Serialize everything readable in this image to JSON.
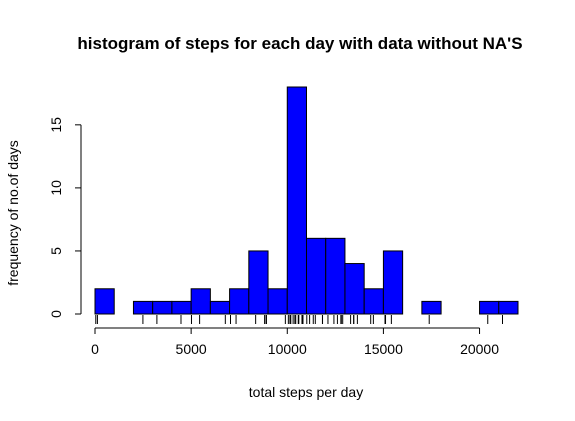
{
  "chart_data": {
    "type": "bar",
    "title": "histogram of steps for each day with data without NA'S",
    "xlabel": "total steps per day",
    "ylabel": "frequency of no.of days",
    "bar_color": "#0000ff",
    "border_color": "#000000",
    "bin_width": 1000,
    "bins": [
      {
        "start": 0,
        "end": 1000,
        "count": 2
      },
      {
        "start": 1000,
        "end": 2000,
        "count": 0
      },
      {
        "start": 2000,
        "end": 3000,
        "count": 1
      },
      {
        "start": 3000,
        "end": 4000,
        "count": 1
      },
      {
        "start": 4000,
        "end": 5000,
        "count": 1
      },
      {
        "start": 5000,
        "end": 6000,
        "count": 2
      },
      {
        "start": 6000,
        "end": 7000,
        "count": 1
      },
      {
        "start": 7000,
        "end": 8000,
        "count": 2
      },
      {
        "start": 8000,
        "end": 9000,
        "count": 5
      },
      {
        "start": 9000,
        "end": 10000,
        "count": 2
      },
      {
        "start": 10000,
        "end": 11000,
        "count": 18
      },
      {
        "start": 11000,
        "end": 12000,
        "count": 6
      },
      {
        "start": 12000,
        "end": 13000,
        "count": 6
      },
      {
        "start": 13000,
        "end": 14000,
        "count": 4
      },
      {
        "start": 14000,
        "end": 15000,
        "count": 2
      },
      {
        "start": 15000,
        "end": 16000,
        "count": 5
      },
      {
        "start": 16000,
        "end": 17000,
        "count": 0
      },
      {
        "start": 17000,
        "end": 18000,
        "count": 1
      },
      {
        "start": 18000,
        "end": 19000,
        "count": 0
      },
      {
        "start": 19000,
        "end": 20000,
        "count": 0
      },
      {
        "start": 20000,
        "end": 21000,
        "count": 1
      },
      {
        "start": 21000,
        "end": 22000,
        "count": 1
      }
    ],
    "xlim": [
      0,
      22000
    ],
    "ylim": [
      0,
      18
    ],
    "x_ticks": [
      {
        "value": 0,
        "label": "0"
      },
      {
        "value": 5000,
        "label": "5000"
      },
      {
        "value": 10000,
        "label": "10000"
      },
      {
        "value": 15000,
        "label": "15000"
      },
      {
        "value": 20000,
        "label": "20000"
      }
    ],
    "y_ticks": [
      {
        "value": 0,
        "label": "0"
      },
      {
        "value": 5,
        "label": "5"
      },
      {
        "value": 10,
        "label": "10"
      },
      {
        "value": 15,
        "label": "15"
      }
    ],
    "rug": [
      41,
      126,
      2492,
      3219,
      4472,
      5018,
      5441,
      6778,
      7047,
      7336,
      8355,
      8821,
      8841,
      8918,
      9900,
      10056,
      10139,
      10183,
      10304,
      10395,
      10439,
      10571,
      10600,
      10765,
      10766,
      10817,
      11015,
      11162,
      11352,
      11458,
      11829,
      11834,
      12116,
      12426,
      12608,
      12787,
      12811,
      12883,
      13294,
      13452,
      13460,
      13646,
      14339,
      14478,
      15084,
      15098,
      15110,
      15414,
      17382,
      20427,
      21194
    ],
    "grid": false,
    "legend": "none"
  }
}
